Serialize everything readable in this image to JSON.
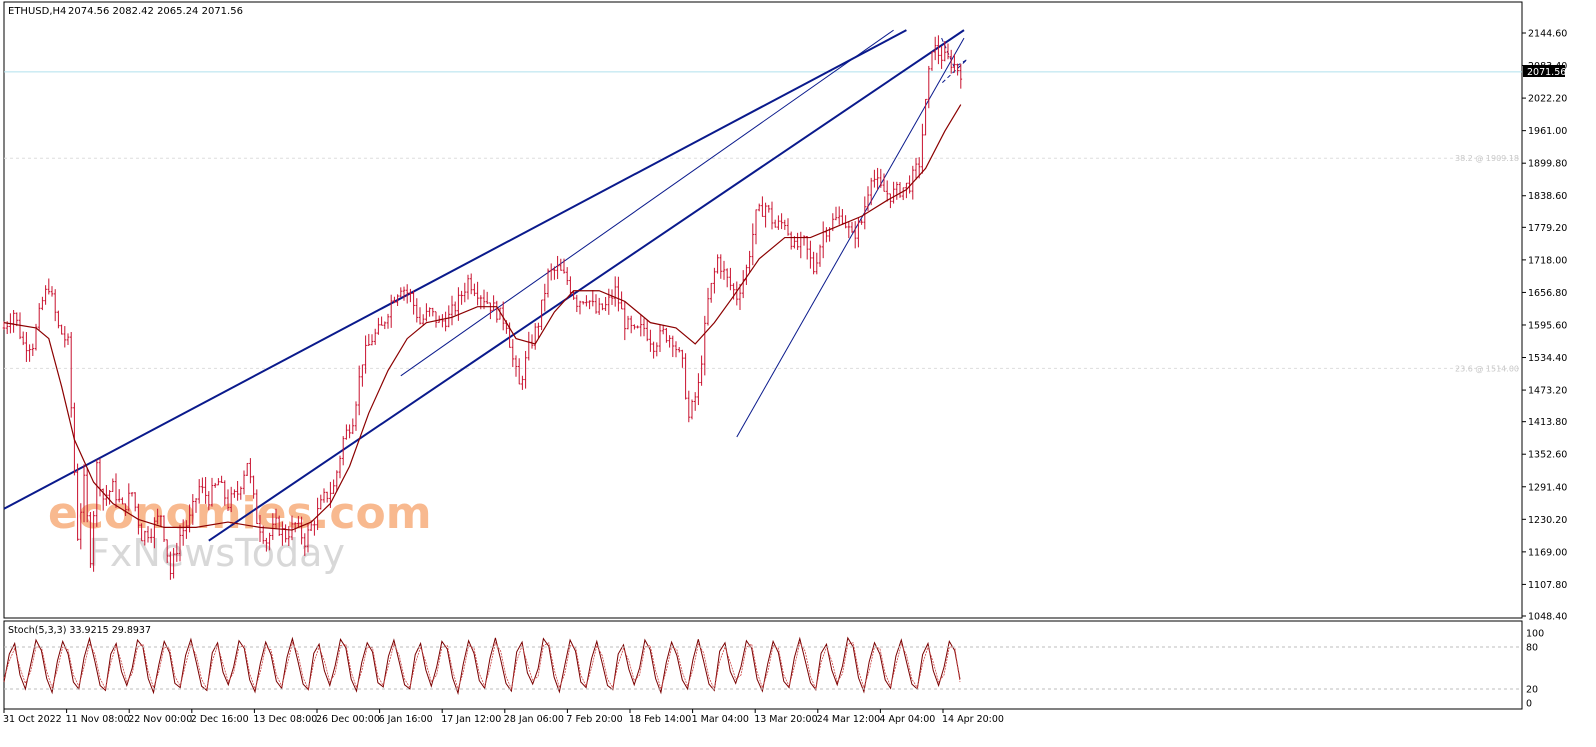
{
  "header": {
    "symbol": "ETHUSD,H4",
    "ohlc": "2074.56 2082.42 2065.24 2071.56"
  },
  "price_badge": "2071.56",
  "watermark": {
    "line1": "economies.com",
    "line2": "FxNewsToday"
  },
  "fib_labels": {
    "fib382": "38.2 @ 1909.18",
    "fib236": "23.6 @ 1514.00"
  },
  "colors": {
    "channel": "#0a1a8c",
    "candle": "#c8102e",
    "ma": "#8b0000",
    "oscillator": "#7a0000",
    "price_line": "#b0e0ee",
    "watermark": "#f5a26a"
  },
  "chart_data": [
    {
      "type": "candlestick",
      "title": "ETHUSD,H4",
      "x_ticks": [
        "31 Oct 2022",
        "11 Nov 08:00",
        "22 Nov 00:00",
        "2 Dec 16:00",
        "13 Dec 08:00",
        "26 Dec 00:00",
        "6 Jan 16:00",
        "17 Jan 12:00",
        "28 Jan 06:00",
        "7 Feb 20:00",
        "18 Feb 14:00",
        "1 Mar 04:00",
        "13 Mar 20:00",
        "24 Mar 12:00",
        "4 Apr 04:00",
        "14 Apr 20:00"
      ],
      "y_ticks": [
        "2144.60",
        "2083.40",
        "2022.20",
        "1961.00",
        "1899.80",
        "1838.60",
        "1779.20",
        "1718.00",
        "1656.80",
        "1595.60",
        "1534.40",
        "1473.20",
        "1413.80",
        "1352.60",
        "1291.40",
        "1230.20",
        "1169.00",
        "1107.80",
        "1048.40"
      ],
      "ylim": [
        1048.4,
        2144.6
      ],
      "last_price": 2071.56,
      "close_path": [
        [
          0,
          1590
        ],
        [
          3,
          1620
        ],
        [
          6,
          1560
        ],
        [
          9,
          1560
        ],
        [
          12,
          1640
        ],
        [
          14,
          1670
        ],
        [
          17,
          1590
        ],
        [
          20,
          1560
        ],
        [
          23,
          1200
        ],
        [
          25,
          1300
        ],
        [
          27,
          1160
        ],
        [
          29,
          1330
        ],
        [
          31,
          1270
        ],
        [
          34,
          1290
        ],
        [
          37,
          1250
        ],
        [
          40,
          1280
        ],
        [
          43,
          1200
        ],
        [
          46,
          1210
        ],
        [
          49,
          1240
        ],
        [
          52,
          1130
        ],
        [
          55,
          1200
        ],
        [
          58,
          1230
        ],
        [
          61,
          1290
        ],
        [
          64,
          1270
        ],
        [
          67,
          1300
        ],
        [
          70,
          1260
        ],
        [
          73,
          1280
        ],
        [
          76,
          1340
        ],
        [
          79,
          1230
        ],
        [
          82,
          1190
        ],
        [
          85,
          1220
        ],
        [
          88,
          1200
        ],
        [
          91,
          1220
        ],
        [
          94,
          1190
        ],
        [
          97,
          1230
        ],
        [
          100,
          1270
        ],
        [
          103,
          1290
        ],
        [
          106,
          1380
        ],
        [
          109,
          1420
        ],
        [
          112,
          1530
        ],
        [
          115,
          1570
        ],
        [
          118,
          1590
        ],
        [
          121,
          1640
        ],
        [
          124,
          1670
        ],
        [
          127,
          1650
        ],
        [
          130,
          1600
        ],
        [
          133,
          1620
        ],
        [
          136,
          1600
        ],
        [
          139,
          1610
        ],
        [
          142,
          1640
        ],
        [
          145,
          1680
        ],
        [
          148,
          1660
        ],
        [
          151,
          1640
        ],
        [
          154,
          1620
        ],
        [
          157,
          1600
        ],
        [
          159,
          1530
        ],
        [
          161,
          1480
        ],
        [
          164,
          1550
        ],
        [
          167,
          1600
        ],
        [
          170,
          1690
        ],
        [
          173,
          1700
        ],
        [
          176,
          1680
        ],
        [
          179,
          1640
        ],
        [
          182,
          1650
        ],
        [
          185,
          1620
        ],
        [
          188,
          1630
        ],
        [
          191,
          1660
        ],
        [
          194,
          1600
        ],
        [
          197,
          1580
        ],
        [
          200,
          1590
        ],
        [
          203,
          1560
        ],
        [
          206,
          1580
        ],
        [
          209,
          1570
        ],
        [
          212,
          1520
        ],
        [
          214,
          1420
        ],
        [
          217,
          1480
        ],
        [
          220,
          1640
        ],
        [
          223,
          1720
        ],
        [
          226,
          1680
        ],
        [
          229,
          1650
        ],
        [
          232,
          1700
        ],
        [
          235,
          1800
        ],
        [
          238,
          1820
        ],
        [
          241,
          1780
        ],
        [
          244,
          1790
        ],
        [
          247,
          1740
        ],
        [
          250,
          1750
        ],
        [
          253,
          1700
        ],
        [
          256,
          1770
        ],
        [
          259,
          1790
        ],
        [
          262,
          1800
        ],
        [
          265,
          1760
        ],
        [
          268,
          1790
        ],
        [
          271,
          1880
        ],
        [
          274,
          1850
        ],
        [
          277,
          1840
        ],
        [
          280,
          1850
        ],
        [
          283,
          1860
        ],
        [
          286,
          1900
        ],
        [
          288,
          2010
        ],
        [
          290,
          2120
        ],
        [
          293,
          2100
        ],
        [
          296,
          2090
        ],
        [
          299,
          2071.56
        ]
      ],
      "moving_average": [
        [
          0,
          1600
        ],
        [
          10,
          1590
        ],
        [
          14,
          1570
        ],
        [
          18,
          1480
        ],
        [
          22,
          1380
        ],
        [
          28,
          1300
        ],
        [
          34,
          1260
        ],
        [
          42,
          1230
        ],
        [
          50,
          1215
        ],
        [
          60,
          1215
        ],
        [
          70,
          1225
        ],
        [
          80,
          1215
        ],
        [
          90,
          1210
        ],
        [
          96,
          1225
        ],
        [
          102,
          1260
        ],
        [
          108,
          1330
        ],
        [
          114,
          1430
        ],
        [
          120,
          1510
        ],
        [
          126,
          1570
        ],
        [
          132,
          1600
        ],
        [
          140,
          1610
        ],
        [
          148,
          1630
        ],
        [
          154,
          1630
        ],
        [
          160,
          1570
        ],
        [
          166,
          1560
        ],
        [
          172,
          1620
        ],
        [
          178,
          1660
        ],
        [
          186,
          1660
        ],
        [
          194,
          1640
        ],
        [
          202,
          1600
        ],
        [
          210,
          1590
        ],
        [
          216,
          1560
        ],
        [
          222,
          1600
        ],
        [
          228,
          1650
        ],
        [
          236,
          1720
        ],
        [
          244,
          1760
        ],
        [
          252,
          1760
        ],
        [
          260,
          1780
        ],
        [
          268,
          1800
        ],
        [
          276,
          1830
        ],
        [
          282,
          1850
        ],
        [
          288,
          1890
        ],
        [
          294,
          1960
        ],
        [
          299,
          2010
        ]
      ],
      "trend_lines": {
        "main_channel_upper": [
          [
            0,
            1250
          ],
          [
            282,
            2150
          ]
        ],
        "main_channel_lower": [
          [
            64,
            1190
          ],
          [
            300,
            2150
          ]
        ],
        "steep_channel_upper": [
          [
            124,
            1500
          ],
          [
            278,
            2150
          ]
        ],
        "steep_channel_lower": [
          [
            229,
            1385
          ],
          [
            300,
            2135
          ]
        ],
        "triangle": [
          [
            293,
            2135
          ],
          [
            297,
            2080
          ],
          [
            301,
            2095
          ],
          [
            293,
            2050
          ]
        ]
      },
      "fib_levels": [
        {
          "label": "38.2 @ 1909.18",
          "value": 1909.18
        },
        {
          "label": "23.6 @ 1514.00",
          "value": 1514.0
        }
      ]
    },
    {
      "type": "line",
      "title": "Stoch(5,3,3) 33.9215 29.8937",
      "y_ticks": [
        "100",
        "80",
        "20",
        "0"
      ],
      "ylim": [
        0,
        100
      ],
      "levels": [
        80,
        20
      ],
      "series": [
        {
          "name": "Stoch(5,3,3)",
          "values": [
            30,
            70,
            85,
            40,
            20,
            55,
            90,
            75,
            35,
            15,
            60,
            88,
            70,
            30,
            20,
            65,
            92,
            60,
            25,
            18,
            70,
            85,
            45,
            25,
            50,
            90,
            80,
            35,
            15,
            55,
            88,
            72,
            28,
            22,
            68,
            91,
            58,
            24,
            18,
            72,
            86,
            44,
            26,
            52,
            89,
            78,
            33,
            16,
            57,
            87,
            69,
            31,
            21,
            66,
            92,
            61,
            27,
            19,
            71,
            84,
            46,
            25,
            53,
            91,
            79,
            34,
            17,
            58,
            86,
            73,
            29,
            23,
            67,
            90,
            59,
            26,
            20,
            69,
            85,
            47,
            24,
            51,
            88,
            77,
            36,
            14,
            56,
            89,
            71,
            32,
            21,
            64,
            93,
            62,
            28,
            17,
            73,
            87,
            43,
            27,
            49,
            92,
            81,
            37,
            16,
            54,
            90,
            74,
            30,
            22,
            63,
            88,
            57,
            25,
            19,
            70,
            83,
            48,
            26,
            50,
            90,
            76,
            35,
            15,
            58,
            87,
            68,
            33,
            20,
            62,
            91,
            60,
            27,
            18,
            74,
            86,
            45,
            28,
            52,
            89,
            78,
            34,
            17,
            56,
            88,
            72,
            31,
            22,
            65,
            92,
            61,
            29,
            19,
            71,
            84,
            47,
            26,
            53,
            93,
            80,
            36,
            16,
            59,
            86,
            70,
            33,
            21,
            67,
            90,
            58,
            27,
            20,
            69,
            85,
            46,
            25,
            51,
            88,
            75,
            33.9
          ]
        },
        {
          "name": "Signal",
          "values": [
            35,
            60,
            78,
            50,
            28,
            45,
            80,
            80,
            45,
            22,
            48,
            80,
            76,
            40,
            24,
            52,
            85,
            70,
            35,
            20,
            58,
            82,
            58,
            30,
            42,
            80,
            84,
            45,
            22,
            45,
            80,
            78,
            38,
            24,
            55,
            84,
            68,
            34,
            20,
            60,
            82,
            56,
            30,
            44,
            80,
            82,
            42,
            20,
            45,
            80,
            76,
            40,
            24,
            54,
            86,
            72,
            36,
            20,
            58,
            80,
            60,
            30,
            42,
            82,
            84,
            44,
            22,
            46,
            80,
            79,
            38,
            25,
            54,
            84,
            68,
            34,
            22,
            56,
            80,
            58,
            30,
            40,
            80,
            82,
            46,
            20,
            44,
            82,
            78,
            42,
            24,
            50,
            86,
            74,
            38,
            20,
            60,
            82,
            56,
            32,
            38,
            82,
            86,
            48,
            22,
            42,
            82,
            80,
            40,
            24,
            50,
            82,
            68,
            34,
            22,
            56,
            78,
            60,
            32,
            40,
            80,
            82,
            46,
            20,
            46,
            80,
            76,
            44,
            24,
            48,
            84,
            72,
            36,
            20,
            60,
            80,
            58,
            34,
            40,
            80,
            84,
            44,
            22,
            44,
            82,
            78,
            40,
            24,
            52,
            86,
            74,
            38,
            20,
            58,
            80,
            60,
            30,
            42,
            84,
            86,
            46,
            22,
            46,
            80,
            78,
            42,
            24,
            54,
            84,
            68,
            34,
            22,
            56,
            80,
            58,
            30,
            40,
            80,
            80,
            29.9
          ]
        }
      ]
    }
  ]
}
